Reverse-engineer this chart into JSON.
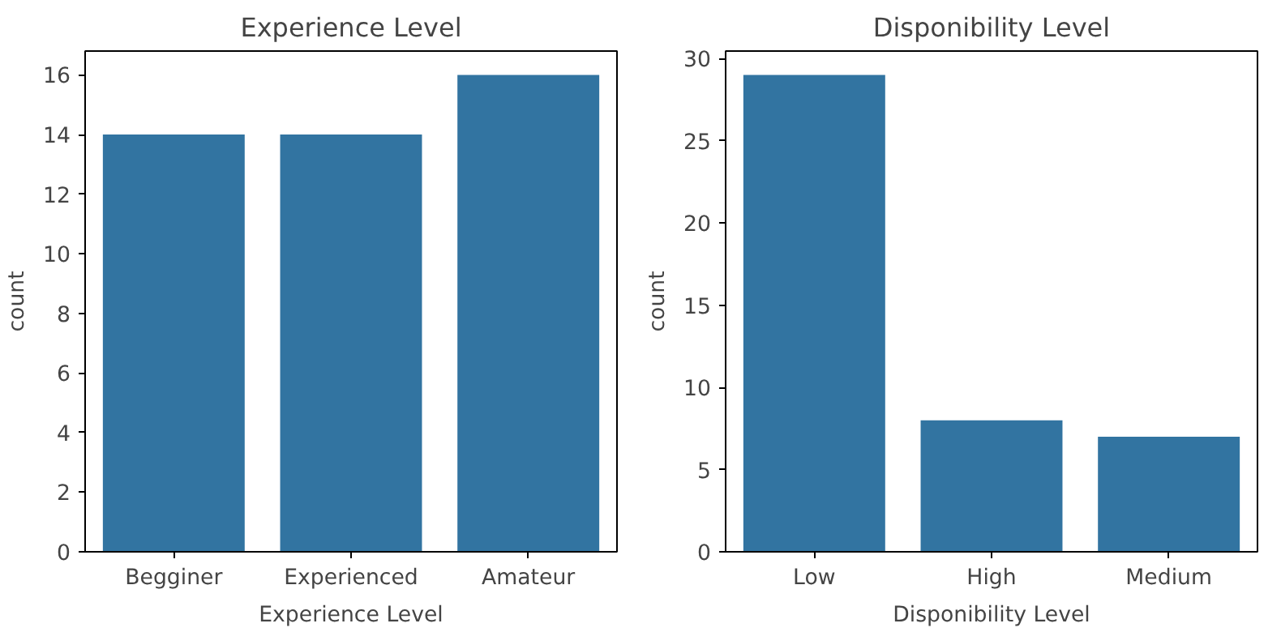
{
  "chart_data": [
    {
      "type": "bar",
      "title": "Experience Level",
      "xlabel": "Experience Level",
      "ylabel": "count",
      "categories": [
        "Begginer",
        "Experienced",
        "Amateur"
      ],
      "values": [
        14,
        14,
        16
      ],
      "color": "#3274a1",
      "ylim": [
        0,
        16.8
      ],
      "yticks": [
        0,
        2,
        4,
        6,
        8,
        10,
        12,
        14,
        16
      ],
      "grid": false,
      "legend": false
    },
    {
      "type": "bar",
      "title": "Disponibility Level",
      "xlabel": "Disponibility Level",
      "ylabel": "count",
      "categories": [
        "Low",
        "High",
        "Medium"
      ],
      "values": [
        29,
        8,
        7
      ],
      "color": "#3274a1",
      "ylim": [
        0,
        30.45
      ],
      "yticks": [
        0,
        5,
        10,
        15,
        20,
        25,
        30
      ],
      "grid": false,
      "legend": false
    }
  ]
}
